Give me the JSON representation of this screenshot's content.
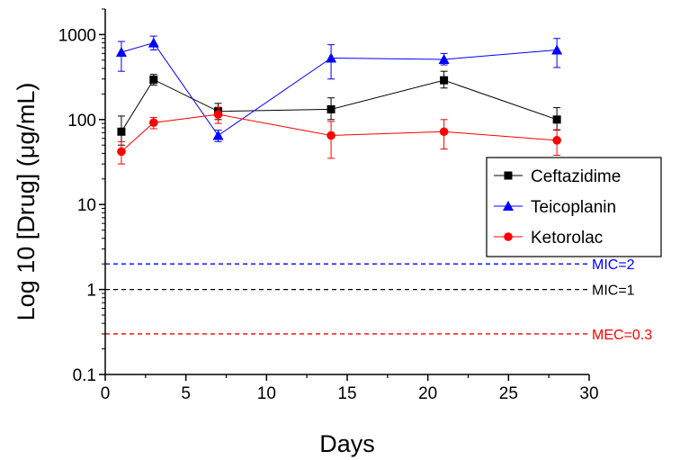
{
  "chart_data": {
    "type": "line",
    "xlabel": "Days",
    "ylabel": "Log 10 [Drug] (μg/mL)",
    "xlim": [
      0,
      30
    ],
    "ylim": [
      0.1,
      2000
    ],
    "yscale": "log",
    "xticks": [
      "0",
      "5",
      "10",
      "15",
      "20",
      "25",
      "30"
    ],
    "yticks": [
      "0.1",
      "1",
      "10",
      "100",
      "1000"
    ],
    "x": [
      1,
      3,
      7,
      14,
      21,
      28
    ],
    "series": [
      {
        "name": "Ceftazidime",
        "color": "#000000",
        "marker": "square",
        "values": [
          72,
          295,
          125,
          132,
          290,
          100
        ],
        "error_low": [
          50,
          255,
          100,
          100,
          235,
          75
        ],
        "error_high": [
          110,
          340,
          155,
          180,
          370,
          138
        ]
      },
      {
        "name": "Teicoplanin",
        "color": "#0000ff",
        "marker": "triangle",
        "values": [
          620,
          800,
          65,
          530,
          510,
          660
        ],
        "error_low": [
          370,
          660,
          55,
          300,
          440,
          410
        ],
        "error_high": [
          830,
          960,
          75,
          760,
          600,
          900
        ]
      },
      {
        "name": "Ketorolac",
        "color": "#ff0000",
        "marker": "circle",
        "values": [
          42,
          92,
          115,
          65,
          72,
          57
        ],
        "error_low": [
          30,
          78,
          90,
          35,
          45,
          38
        ],
        "error_high": [
          55,
          106,
          140,
          95,
          100,
          76
        ]
      }
    ],
    "reference_lines": [
      {
        "label": "MIC=2",
        "value": 2,
        "color": "#0000ff"
      },
      {
        "label": "MIC=1",
        "value": 1,
        "color": "#000000"
      },
      {
        "label": "MEC=0.3",
        "value": 0.3,
        "color": "#ff0000"
      }
    ],
    "legend_position": "center-right"
  }
}
